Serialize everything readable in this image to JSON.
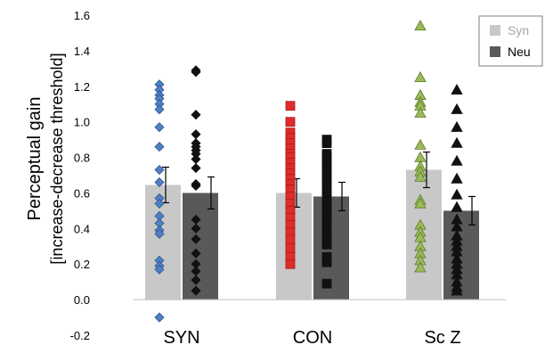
{
  "chart_data": {
    "type": "bar",
    "categories": [
      "SYN",
      "CON",
      "Sc Z"
    ],
    "ylabel_line1": "Perceptual gain",
    "ylabel_line2": "[increase-decrease threshold]",
    "ylim": [
      -0.2,
      1.6
    ],
    "yticks": [
      "-0.2",
      "0.0",
      "0.2",
      "0.4",
      "0.6",
      "0.8",
      "1.0",
      "1.2",
      "1.4",
      "1.6"
    ],
    "legend_position": "top-right",
    "series": [
      {
        "name": "Syn",
        "color": "#c8c8c8",
        "values": [
          0.645,
          0.6,
          0.73
        ],
        "errors": [
          0.1,
          0.08,
          0.1
        ]
      },
      {
        "name": "Neu",
        "color": "#595959",
        "values": [
          0.6,
          0.58,
          0.5
        ],
        "errors": [
          0.09,
          0.08,
          0.08
        ]
      }
    ],
    "points": [
      {
        "category": "SYN",
        "series": "Syn",
        "marker": "diamond",
        "color": "#4f81bd",
        "values": [
          1.21,
          1.18,
          1.15,
          1.13,
          1.1,
          1.07,
          0.97,
          0.86,
          0.73,
          0.66,
          0.57,
          0.54,
          0.47,
          0.43,
          0.39,
          0.37,
          0.22,
          0.19,
          0.17,
          -0.1
        ]
      },
      {
        "category": "SYN",
        "series": "Neu",
        "marker": "diamond",
        "color": "#111111",
        "values": [
          1.29,
          1.28,
          1.04,
          0.93,
          0.88,
          0.86,
          0.84,
          0.82,
          0.79,
          0.74,
          0.65,
          0.64,
          0.45,
          0.4,
          0.34,
          0.26,
          0.2,
          0.16,
          0.11,
          0.05
        ]
      },
      {
        "category": "CON",
        "series": "Syn",
        "marker": "square",
        "color": "#e02b2b",
        "values": [
          1.09,
          1.0,
          0.94,
          0.91,
          0.88,
          0.85,
          0.82,
          0.8,
          0.77,
          0.74,
          0.71,
          0.68,
          0.65,
          0.62,
          0.58,
          0.54,
          0.5,
          0.46,
          0.42,
          0.38,
          0.34,
          0.29,
          0.24,
          0.2
        ]
      },
      {
        "category": "CON",
        "series": "Neu",
        "marker": "square",
        "color": "#111111",
        "values": [
          0.9,
          0.88,
          0.82,
          0.8,
          0.78,
          0.76,
          0.74,
          0.71,
          0.69,
          0.66,
          0.64,
          0.61,
          0.58,
          0.55,
          0.52,
          0.49,
          0.46,
          0.42,
          0.38,
          0.34,
          0.31,
          0.24,
          0.21,
          0.09
        ]
      },
      {
        "category": "Sc Z",
        "series": "Syn",
        "marker": "triangle",
        "color": "#9bbb59",
        "values": [
          1.54,
          1.25,
          1.15,
          1.11,
          1.09,
          1.05,
          0.87,
          0.8,
          0.75,
          0.72,
          0.69,
          0.56,
          0.54,
          0.42,
          0.38,
          0.35,
          0.3,
          0.26,
          0.22,
          0.18
        ]
      },
      {
        "category": "Sc Z",
        "series": "Neu",
        "marker": "triangle",
        "color": "#111111",
        "values": [
          1.18,
          1.07,
          0.97,
          0.88,
          0.78,
          0.68,
          0.59,
          0.52,
          0.45,
          0.41,
          0.36,
          0.33,
          0.3,
          0.27,
          0.23,
          0.2,
          0.17,
          0.14,
          0.1,
          0.07,
          0.05
        ]
      }
    ]
  }
}
